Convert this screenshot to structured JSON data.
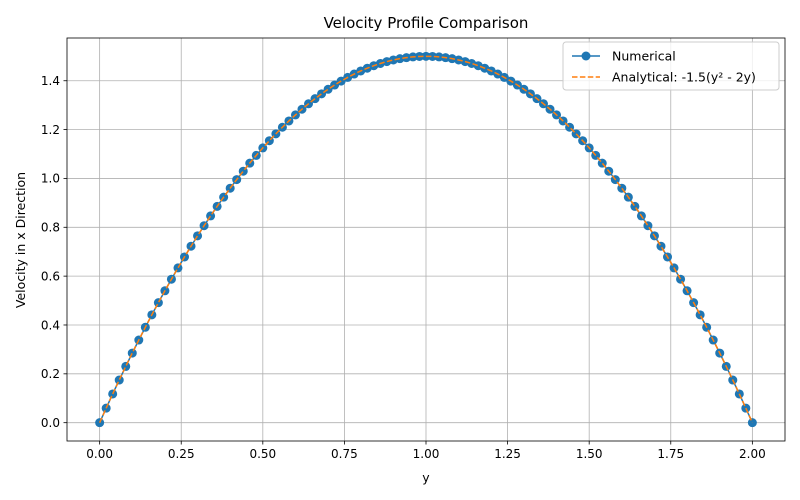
{
  "chart_data": {
    "type": "line",
    "title": "Velocity Profile Comparison",
    "xlabel": "y",
    "ylabel": "Velocity in x Direction",
    "xlim": [
      -0.1,
      2.1
    ],
    "ylim": [
      -0.075,
      1.575
    ],
    "xticks": [
      0.0,
      0.25,
      0.5,
      0.75,
      1.0,
      1.25,
      1.5,
      1.75,
      2.0
    ],
    "xtick_labels": [
      "0.00",
      "0.25",
      "0.50",
      "0.75",
      "1.00",
      "1.25",
      "1.50",
      "1.75",
      "2.00"
    ],
    "yticks": [
      0.0,
      0.2,
      0.4,
      0.6,
      0.8,
      1.0,
      1.2,
      1.4
    ],
    "ytick_labels": [
      "0.0",
      "0.2",
      "0.4",
      "0.6",
      "0.8",
      "1.0",
      "1.2",
      "1.4"
    ],
    "grid": true,
    "legend_position": "top-right",
    "series": [
      {
        "name": "Numerical",
        "color": "#1f77b4",
        "style": "solid-line-with-circle-markers",
        "x": [
          0.0,
          0.02,
          0.04,
          0.06,
          0.08,
          0.1,
          0.12,
          0.14,
          0.16,
          0.18,
          0.2,
          0.22,
          0.24,
          0.26,
          0.28,
          0.3,
          0.32,
          0.34,
          0.36,
          0.38,
          0.4,
          0.42,
          0.44,
          0.46,
          0.48,
          0.5,
          0.52,
          0.54,
          0.56,
          0.58,
          0.6,
          0.62,
          0.64,
          0.66,
          0.68,
          0.7,
          0.72,
          0.74,
          0.76,
          0.78,
          0.8,
          0.82,
          0.84,
          0.86,
          0.88,
          0.9,
          0.92,
          0.94,
          0.96,
          0.98,
          1.0,
          1.02,
          1.04,
          1.06,
          1.08,
          1.1,
          1.12,
          1.14,
          1.16,
          1.18,
          1.2,
          1.22,
          1.24,
          1.26,
          1.28,
          1.3,
          1.32,
          1.34,
          1.36,
          1.38,
          1.4,
          1.42,
          1.44,
          1.46,
          1.48,
          1.5,
          1.52,
          1.54,
          1.56,
          1.58,
          1.6,
          1.62,
          1.64,
          1.66,
          1.68,
          1.7,
          1.72,
          1.74,
          1.76,
          1.78,
          1.8,
          1.82,
          1.84,
          1.86,
          1.88,
          1.9,
          1.92,
          1.94,
          1.96,
          1.98,
          2.0
        ],
        "y": [
          0.0,
          0.0594,
          0.1176,
          0.1746,
          0.2304,
          0.285,
          0.3384,
          0.3906,
          0.4416,
          0.4914,
          0.54,
          0.5874,
          0.6336,
          0.6786,
          0.7224,
          0.765,
          0.8064,
          0.8466,
          0.8856,
          0.9234,
          0.96,
          0.9954,
          1.0296,
          1.0626,
          1.0944,
          1.125,
          1.1544,
          1.1826,
          1.2096,
          1.2354,
          1.26,
          1.2834,
          1.3056,
          1.3266,
          1.3464,
          1.365,
          1.3824,
          1.3986,
          1.4136,
          1.4274,
          1.44,
          1.4514,
          1.4616,
          1.4706,
          1.4784,
          1.485,
          1.4904,
          1.4946,
          1.4976,
          1.4994,
          1.5,
          1.4994,
          1.4976,
          1.4946,
          1.4904,
          1.485,
          1.4784,
          1.4706,
          1.4616,
          1.4514,
          1.44,
          1.4274,
          1.4136,
          1.3986,
          1.3824,
          1.365,
          1.3464,
          1.3266,
          1.3056,
          1.2834,
          1.26,
          1.2354,
          1.2096,
          1.1826,
          1.1544,
          1.125,
          1.0944,
          1.0626,
          1.0296,
          0.9954,
          0.96,
          0.9234,
          0.8856,
          0.8466,
          0.8064,
          0.765,
          0.7224,
          0.6786,
          0.6336,
          0.5874,
          0.54,
          0.4914,
          0.4416,
          0.3906,
          0.3384,
          0.285,
          0.2304,
          0.1746,
          0.1176,
          0.0594,
          0.0
        ]
      },
      {
        "name": "Analytical: -1.5(y² - 2y)",
        "color": "#ff7f0e",
        "style": "dashed-line",
        "x": [
          0.0,
          0.1,
          0.2,
          0.3,
          0.4,
          0.5,
          0.6,
          0.7,
          0.8,
          0.9,
          1.0,
          1.1,
          1.2,
          1.3,
          1.4,
          1.5,
          1.6,
          1.7,
          1.8,
          1.9,
          2.0
        ],
        "y": [
          0.0,
          0.285,
          0.54,
          0.765,
          0.96,
          1.125,
          1.26,
          1.365,
          1.44,
          1.485,
          1.5,
          1.485,
          1.44,
          1.365,
          1.26,
          1.125,
          0.96,
          0.765,
          0.54,
          0.285,
          0.0
        ]
      }
    ]
  }
}
